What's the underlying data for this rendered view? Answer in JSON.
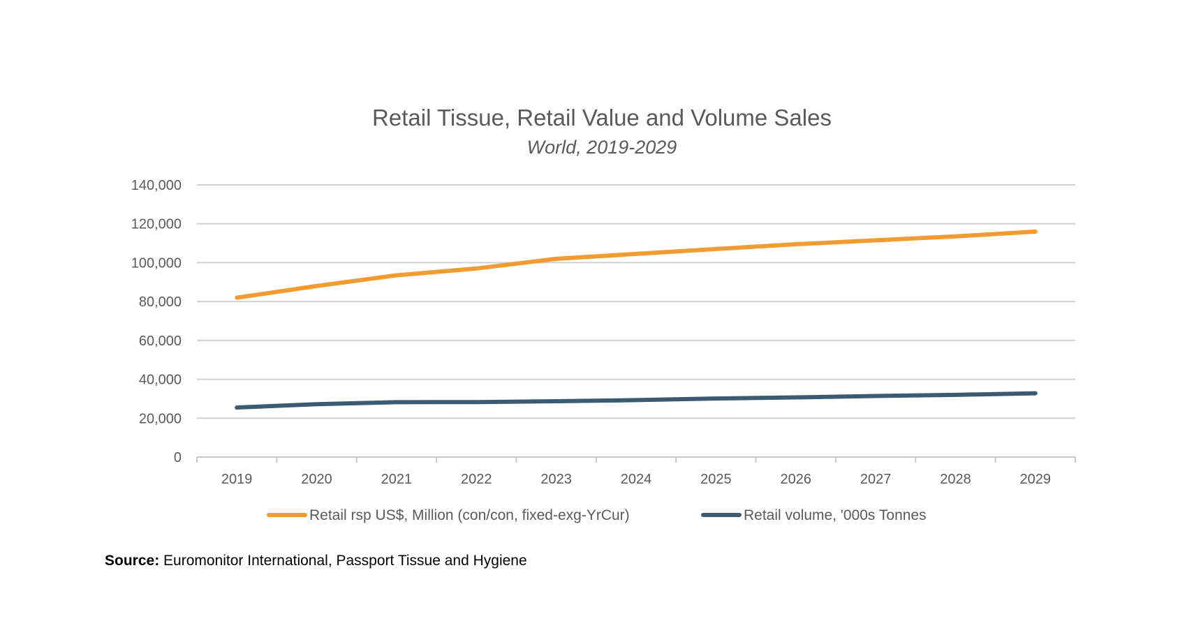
{
  "chart_data": {
    "type": "line",
    "title": "Retail Tissue, Retail Value and Volume Sales",
    "subtitle": "World, 2019-2029",
    "x": [
      "2019",
      "2020",
      "2021",
      "2022",
      "2023",
      "2024",
      "2025",
      "2026",
      "2027",
      "2028",
      "2029"
    ],
    "yticks": [
      "0",
      "20,000",
      "40,000",
      "60,000",
      "80,000",
      "100,000",
      "120,000",
      "140,000"
    ],
    "ylim": [
      0,
      140000
    ],
    "grid": true,
    "legend_position": "bottom",
    "series": [
      {
        "name": "Retail rsp US$, Million (con/con, fixed-exg-YrCur)",
        "color": "#F29B30",
        "values": [
          82000,
          88000,
          93500,
          97000,
          102000,
          104500,
          107000,
          109500,
          111500,
          113500,
          116000
        ]
      },
      {
        "name": "Retail volume, '000s Tonnes",
        "color": "#3B5B73",
        "values": [
          25500,
          27200,
          28200,
          28300,
          28700,
          29300,
          30100,
          30700,
          31400,
          32000,
          32800
        ]
      }
    ]
  },
  "source": {
    "label": "Source:",
    "text": "Euromonitor International, Passport Tissue and Hygiene"
  }
}
